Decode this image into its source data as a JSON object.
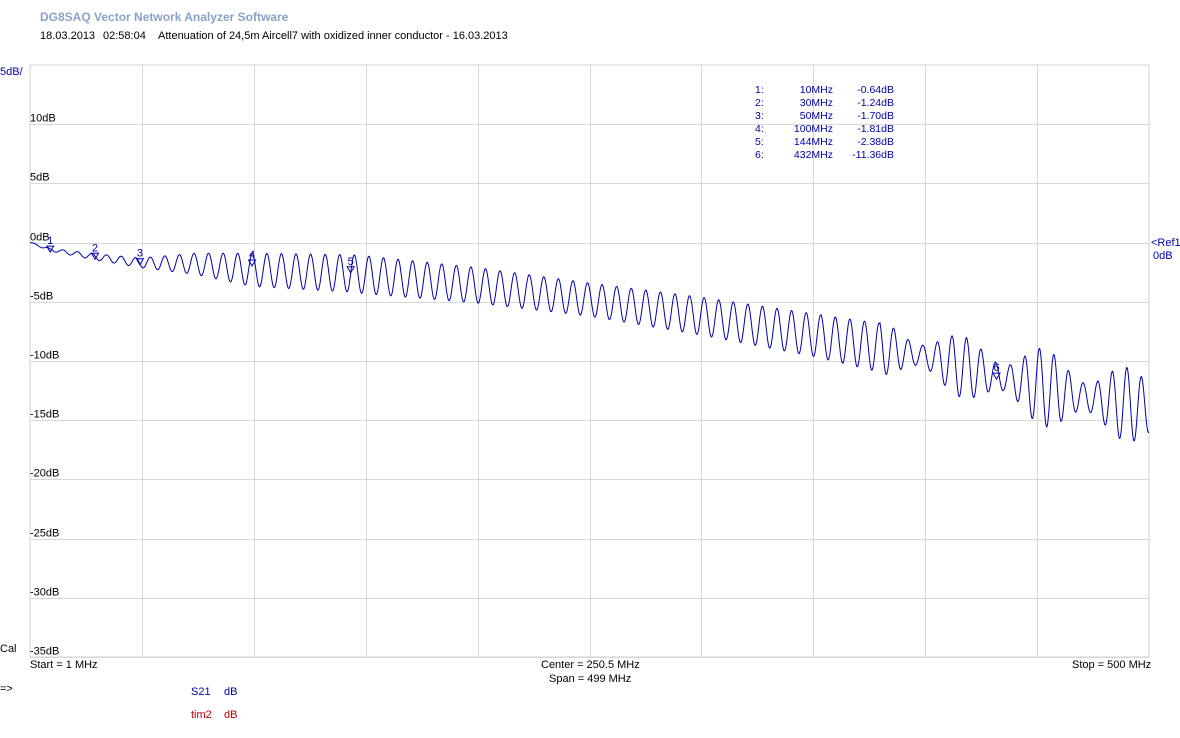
{
  "app_title": "DG8SAQ Vector Network Analyzer Software",
  "header": {
    "date": "18.03.2013",
    "time": "02:58:04",
    "description": "Attenuation of 24,5m Aircell7 with oxidized inner conductor - 16.03.2013"
  },
  "scale_label": "5dB/",
  "ref_label": "<Ref1",
  "ref_value": "0dB",
  "cal_label": "Cal",
  "prompt_label": "=>",
  "footer": {
    "start": "Start = 1 MHz",
    "center": "Center = 250.5 MHz",
    "span": "Span = 499 MHz",
    "stop": "Stop = 500 MHz"
  },
  "traces_legend": [
    {
      "name": "S21",
      "unit": "dB",
      "color": "#0000aa"
    },
    {
      "name": "tim2",
      "unit": "dB",
      "color": "#c00000"
    }
  ],
  "markers": [
    {
      "num": "1:",
      "freq": "10MHz",
      "value": "-0.64dB"
    },
    {
      "num": "2:",
      "freq": "30MHz",
      "value": "-1.24dB"
    },
    {
      "num": "3:",
      "freq": "50MHz",
      "value": "-1.70dB"
    },
    {
      "num": "4:",
      "freq": "100MHz",
      "value": "-1.81dB"
    },
    {
      "num": "5:",
      "freq": "144MHz",
      "value": "-2.38dB"
    },
    {
      "num": "6:",
      "freq": "432MHz",
      "value": "-11.36dB"
    }
  ],
  "chart_data": {
    "type": "line",
    "xlabel": "",
    "ylabel": "",
    "xlim": [
      1,
      500
    ],
    "ylim": [
      -35,
      15
    ],
    "grid": true,
    "yticks": [
      10,
      5,
      0,
      -5,
      -10,
      -15,
      -20,
      -25,
      -30,
      -35
    ],
    "ytick_labels": [
      "10dB",
      "5dB",
      "0dB",
      "-5dB",
      "-10dB",
      "-15dB",
      "-20dB",
      "-25dB",
      "-30dB",
      "-35dB"
    ],
    "x_divisions": 10,
    "trace_color": "#0000aa",
    "series": [
      {
        "name": "S21",
        "ripple_model": {
          "ripple_period_mhz": 6.5
        },
        "envelope": [
          {
            "x": 1,
            "y": 0.0
          },
          {
            "x": 10,
            "y": -0.6
          },
          {
            "x": 30,
            "y": -1.2
          },
          {
            "x": 50,
            "y": -1.7
          },
          {
            "x": 75,
            "y": -1.8
          },
          {
            "x": 100,
            "y": -2.3
          },
          {
            "x": 144,
            "y": -2.6
          },
          {
            "x": 200,
            "y": -3.6
          },
          {
            "x": 250,
            "y": -4.8
          },
          {
            "x": 300,
            "y": -6.2
          },
          {
            "x": 350,
            "y": -7.8
          },
          {
            "x": 400,
            "y": -9.6
          },
          {
            "x": 432,
            "y": -11.3
          },
          {
            "x": 470,
            "y": -13.0
          },
          {
            "x": 500,
            "y": -14.0
          }
        ],
        "ripple_amplitude": [
          {
            "x": 1,
            "y": 0.05
          },
          {
            "x": 50,
            "y": 0.4
          },
          {
            "x": 100,
            "y": 1.4
          },
          {
            "x": 150,
            "y": 1.6
          },
          {
            "x": 250,
            "y": 1.4
          },
          {
            "x": 350,
            "y": 1.8
          },
          {
            "x": 420,
            "y": 2.4
          },
          {
            "x": 450,
            "y": 3.0
          },
          {
            "x": 500,
            "y": 2.8
          }
        ]
      }
    ],
    "marker_points": [
      {
        "label": "1",
        "x": 10,
        "y": -0.64
      },
      {
        "label": "2",
        "x": 30,
        "y": -1.24
      },
      {
        "label": "3",
        "x": 50,
        "y": -1.7
      },
      {
        "label": "4",
        "x": 100,
        "y": -1.81
      },
      {
        "label": "5",
        "x": 144,
        "y": -2.38
      },
      {
        "label": "6",
        "x": 432,
        "y": -11.36
      }
    ]
  }
}
